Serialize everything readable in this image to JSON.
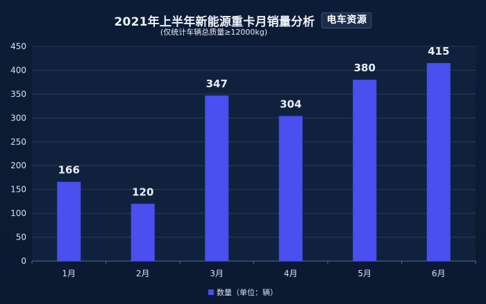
{
  "header": {
    "title": "2021年上半年新能源重卡月销量分析",
    "brand": "电车资源",
    "subtitle": "(仅统计车辆总质量≥12000kg)"
  },
  "legend": {
    "label": "数量（单位：辆）"
  },
  "colors": {
    "background": "#0c1b33",
    "bar": "#4a4ff0",
    "grid": "#2a3b5c",
    "text": "#e6ecf7"
  },
  "chart_data": {
    "type": "bar",
    "categories": [
      "1月",
      "2月",
      "3月",
      "4月",
      "5月",
      "6月"
    ],
    "series": [
      {
        "name": "数量（单位：辆）",
        "values": [
          166,
          120,
          347,
          304,
          380,
          415
        ]
      }
    ],
    "title": "2021年上半年新能源重卡月销量分析",
    "subtitle": "(仅统计车辆总质量≥12000kg)",
    "ylim": [
      0,
      450
    ],
    "yticks": [
      0,
      50,
      100,
      150,
      200,
      250,
      300,
      350,
      400,
      450
    ],
    "grid": true,
    "legend_position": "bottom-center",
    "data_labels": true
  }
}
